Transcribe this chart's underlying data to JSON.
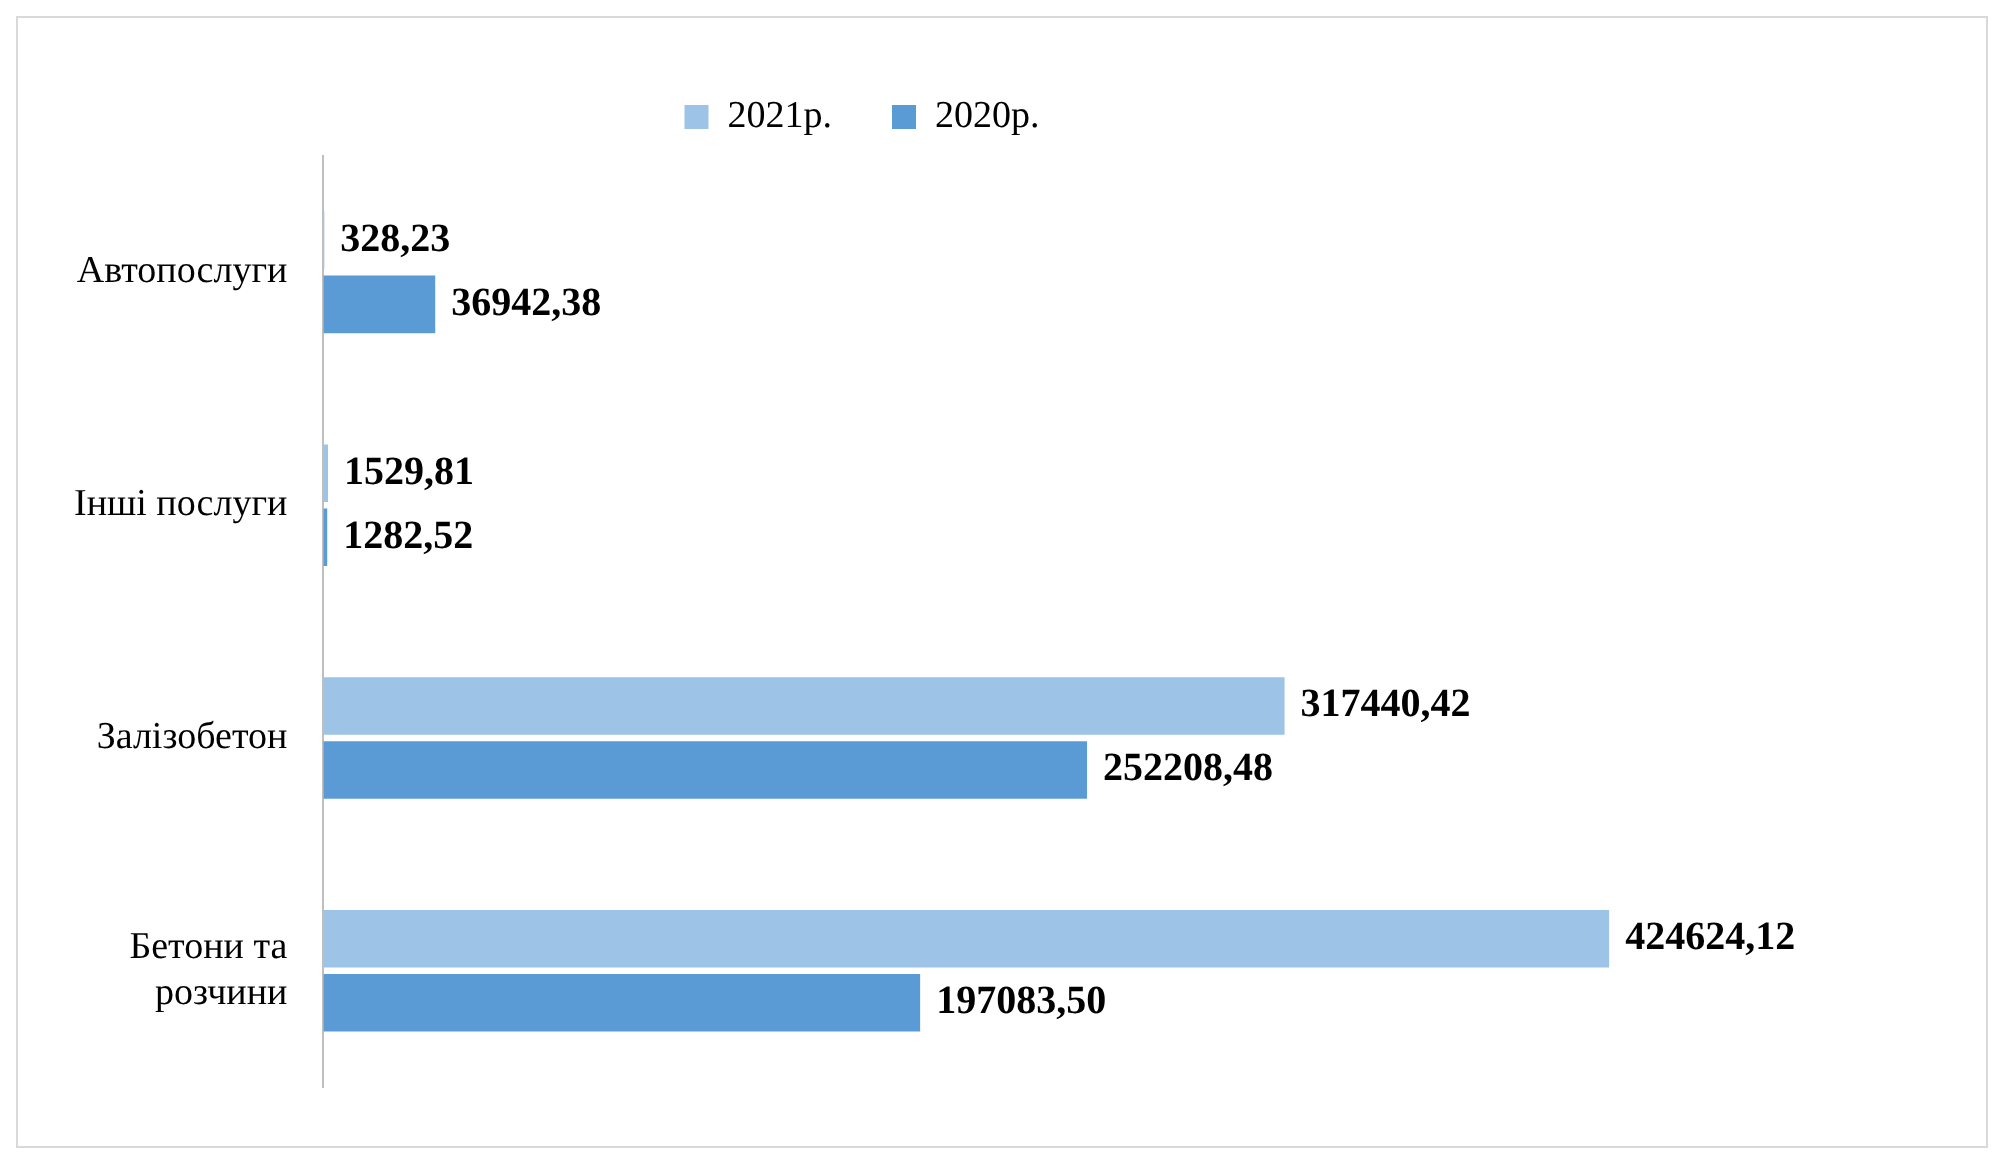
{
  "chart_data": {
    "type": "bar",
    "orientation": "horizontal",
    "categories": [
      "Автопослуги",
      "Інші послуги",
      "Залізобетон",
      "Бетони та розчини"
    ],
    "series": [
      {
        "name": "2021р.",
        "color": "#9dc3e6",
        "values": [
          328.23,
          1529.81,
          317440.42,
          424624.12
        ],
        "value_labels": [
          "328,23",
          "1529,81",
          "317440,42",
          "424624,12"
        ]
      },
      {
        "name": "2020р.",
        "color": "#5b9bd5",
        "values": [
          36942.38,
          1282.52,
          252208.48,
          197083.5
        ],
        "value_labels": [
          "36942,38",
          "1282,52",
          "252208,48",
          "197083,50"
        ]
      }
    ],
    "legend": "top"
  }
}
